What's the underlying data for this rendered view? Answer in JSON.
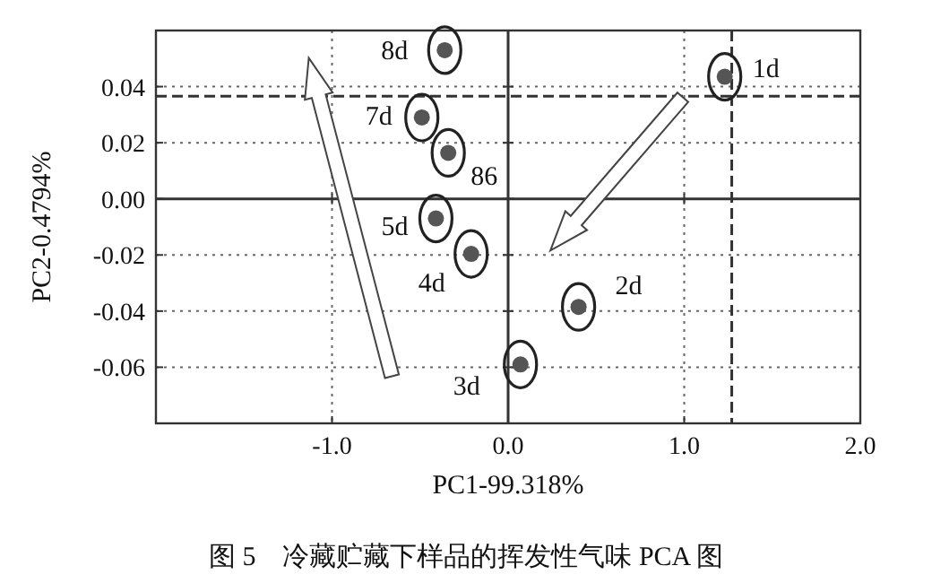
{
  "chart_data": {
    "type": "scatter",
    "xlabel": "PC1-99.318%",
    "ylabel": "PC2-0.4794%",
    "xlim": [
      -2.0,
      2.0
    ],
    "ylim": [
      -0.08,
      0.06
    ],
    "xticks": [
      {
        "value": -1,
        "label": "-1.0"
      },
      {
        "value": 0,
        "label": "0.0"
      },
      {
        "value": 1,
        "label": "1.0"
      },
      {
        "value": 2,
        "label": "2.0"
      }
    ],
    "yticks": [
      {
        "value": -0.06,
        "label": "-0.06"
      },
      {
        "value": -0.04,
        "label": "-0.04"
      },
      {
        "value": -0.02,
        "label": "-0.02"
      },
      {
        "value": 0,
        "label": "0.00"
      },
      {
        "value": 0.02,
        "label": "0.02"
      },
      {
        "value": 0.04,
        "label": "0.04"
      }
    ],
    "grid": true,
    "marker": "circle",
    "series": [
      {
        "color": "#555555",
        "x": [
          1.23,
          0.4,
          0.07,
          -0.21,
          -0.41,
          -0.34,
          -0.49,
          -0.36
        ],
        "values": [
          0.0435,
          -0.0385,
          -0.059,
          -0.0196,
          -0.007,
          0.0164,
          0.029,
          0.053
        ]
      }
    ],
    "ref_lines": [
      {
        "axis": "y",
        "value": 0.0366,
        "line_style": "dashed",
        "color": "#333333"
      },
      {
        "axis": "x",
        "value": 1.27,
        "line_style": "dashed",
        "color": "#333333"
      }
    ],
    "annotations": [
      {
        "text": "1d",
        "x": 1.23,
        "y": 0.0435
      },
      {
        "text": "2d",
        "x": 0.4,
        "y": -0.0385
      },
      {
        "text": "3d",
        "x": 0.07,
        "y": -0.059
      },
      {
        "text": "4d",
        "x": -0.21,
        "y": -0.0196
      },
      {
        "text": "5d",
        "x": -0.41,
        "y": -0.007
      },
      {
        "text": "86",
        "x": -0.34,
        "y": 0.0164
      },
      {
        "text": "7d",
        "x": -0.49,
        "y": 0.029
      },
      {
        "text": "8d",
        "x": -0.36,
        "y": 0.053
      },
      "图 5　冷藏贮藏下样品的挥发性气味 PCA 图"
    ]
  }
}
